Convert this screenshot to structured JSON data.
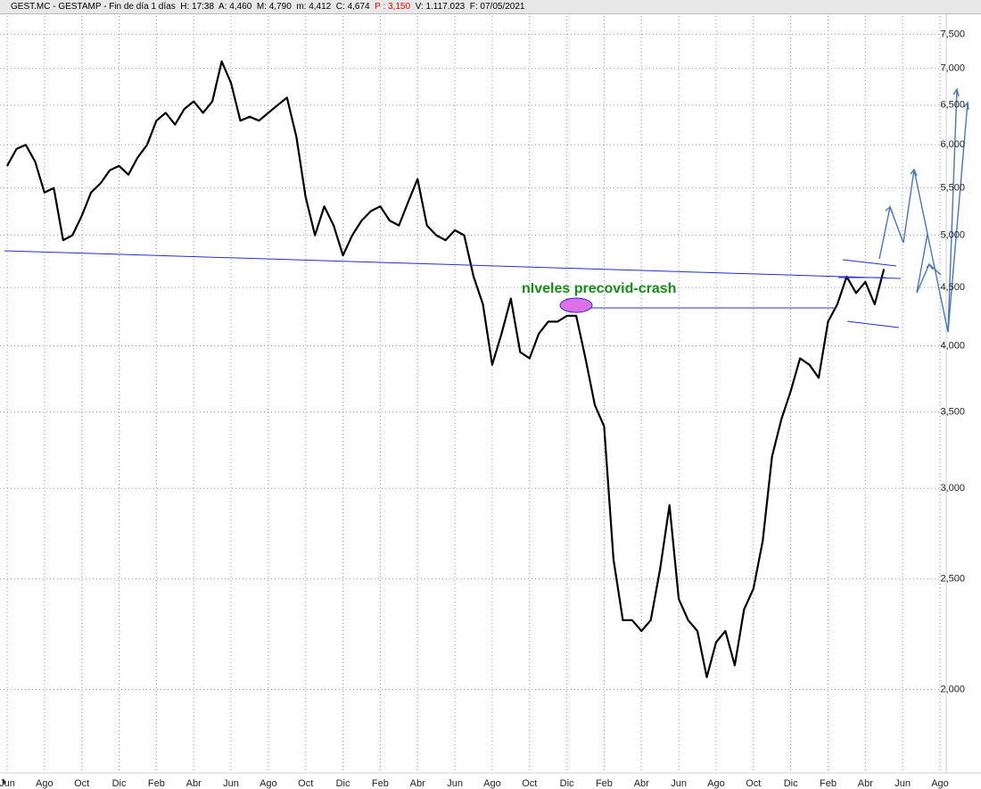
{
  "header": {
    "text": "GEST.MC - GESTAMP - Fin de día 1 días  H: 17:38  A: 4,460  M: 4,790  m: 4,412  C: 4,674",
    "price": "P : 3,150",
    "tail": "V: 1.117.023  F: 07/05/2021"
  },
  "chart_data": {
    "type": "line",
    "color": "#000000",
    "log_scale": true,
    "grid": true,
    "annotation": "nIveles precovid-crash",
    "categories": [
      "Jun",
      null,
      null,
      null,
      "Ago",
      null,
      null,
      null,
      "Oct",
      null,
      null,
      null,
      "Dic",
      null,
      null,
      null,
      "Feb",
      null,
      null,
      null,
      "Abr",
      null,
      null,
      null,
      "Jun",
      null,
      null,
      null,
      "Ago",
      null,
      null,
      null,
      "Oct",
      null,
      null,
      null,
      "Dic",
      null,
      null,
      null,
      "Feb",
      null,
      null,
      null,
      "Abr",
      null,
      null,
      null,
      "Jun",
      null,
      null,
      null,
      "Ago",
      null,
      null,
      null,
      "Oct",
      null,
      null,
      null,
      "Dic",
      null,
      null,
      null,
      "Feb",
      null,
      null,
      null,
      "Abr",
      null,
      null,
      null,
      "Jun",
      null,
      null,
      null,
      "Ago",
      null,
      null,
      null,
      "Oct",
      null,
      null,
      null,
      "Dic",
      null,
      null,
      null,
      "Feb",
      null,
      null,
      null,
      "Abr",
      null,
      null,
      null,
      "Jun",
      null,
      null,
      null,
      "Ago"
    ],
    "values": [
      5.75,
      5.95,
      6.0,
      5.8,
      5.45,
      5.5,
      4.95,
      5.0,
      5.2,
      5.45,
      5.55,
      5.7,
      5.75,
      5.65,
      5.85,
      6.0,
      6.3,
      6.4,
      6.25,
      6.45,
      6.55,
      6.4,
      6.55,
      7.1,
      6.8,
      6.3,
      6.35,
      6.3,
      6.4,
      6.5,
      6.6,
      6.1,
      5.4,
      5.0,
      5.3,
      5.1,
      4.8,
      5.0,
      5.15,
      5.25,
      5.3,
      5.15,
      5.1,
      5.35,
      5.6,
      5.1,
      5.0,
      4.95,
      5.05,
      5.0,
      4.6,
      4.35,
      3.85,
      4.1,
      4.4,
      3.95,
      3.9,
      4.1,
      4.2,
      4.2,
      4.25,
      4.25,
      3.9,
      3.55,
      3.4,
      2.6,
      2.3,
      2.3,
      2.25,
      2.3,
      2.55,
      2.9,
      2.4,
      2.3,
      2.25,
      2.05,
      2.2,
      2.25,
      2.1,
      2.35,
      2.45,
      2.7,
      3.2,
      3.45,
      3.65,
      3.9,
      3.85,
      3.75,
      4.2,
      4.35,
      4.6,
      4.45,
      4.55,
      4.35,
      4.67,
      null,
      null,
      null,
      null,
      null,
      null
    ],
    "ylim": [
      1.69,
      7.78
    ],
    "yticks": [
      {
        "value": 2,
        "label": "2,000"
      },
      {
        "value": 2.5,
        "label": "2,500"
      },
      {
        "value": 3,
        "label": "3,000"
      },
      {
        "value": 3.5,
        "label": "3,500"
      },
      {
        "value": 4,
        "label": "4,000"
      },
      {
        "value": 4.5,
        "label": "4,500"
      },
      {
        "value": 5,
        "label": "5,000"
      },
      {
        "value": 5.5,
        "label": "5,500"
      },
      {
        "value": 6,
        "label": "6,000"
      },
      {
        "value": 6.5,
        "label": "6,500"
      },
      {
        "value": 7,
        "label": "7,000"
      },
      {
        "value": 7.5,
        "label": "7,500"
      }
    ]
  }
}
